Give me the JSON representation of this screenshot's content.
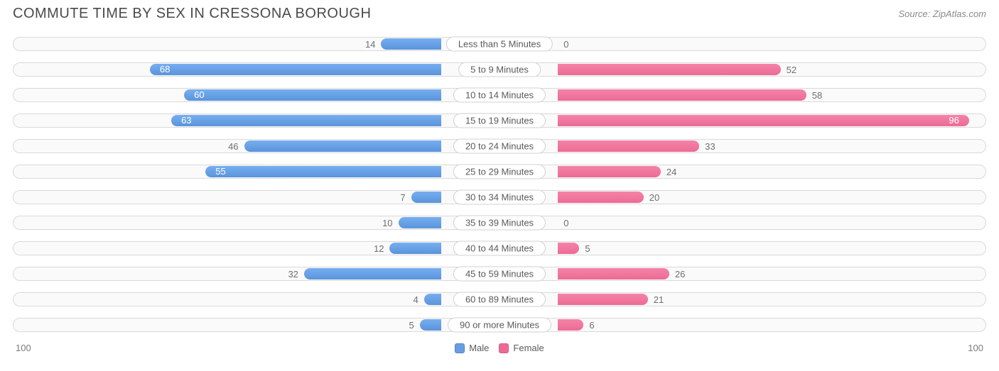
{
  "title": "COMMUTE TIME BY SEX IN CRESSONA BOROUGH",
  "source": "Source: ZipAtlas.com",
  "chart": {
    "type": "diverging-bar",
    "max": 100,
    "axis_left": "100",
    "axis_right": "100",
    "male_color": "#6a9de0",
    "female_color": "#ee6a94",
    "track_border": "#d9d9d9",
    "track_bg": "#fafafa",
    "value_font_size": 13,
    "label_font_size": 13,
    "rows": [
      {
        "label": "Less than 5 Minutes",
        "male": 14,
        "female": 0
      },
      {
        "label": "5 to 9 Minutes",
        "male": 68,
        "female": 52
      },
      {
        "label": "10 to 14 Minutes",
        "male": 60,
        "female": 58
      },
      {
        "label": "15 to 19 Minutes",
        "male": 63,
        "female": 96
      },
      {
        "label": "20 to 24 Minutes",
        "male": 46,
        "female": 33
      },
      {
        "label": "25 to 29 Minutes",
        "male": 55,
        "female": 24
      },
      {
        "label": "30 to 34 Minutes",
        "male": 7,
        "female": 20
      },
      {
        "label": "35 to 39 Minutes",
        "male": 10,
        "female": 0
      },
      {
        "label": "40 to 44 Minutes",
        "male": 12,
        "female": 5
      },
      {
        "label": "45 to 59 Minutes",
        "male": 32,
        "female": 26
      },
      {
        "label": "60 to 89 Minutes",
        "male": 4,
        "female": 21
      },
      {
        "label": "90 or more Minutes",
        "male": 5,
        "female": 6
      }
    ],
    "legend": {
      "male": "Male",
      "female": "Female"
    }
  }
}
